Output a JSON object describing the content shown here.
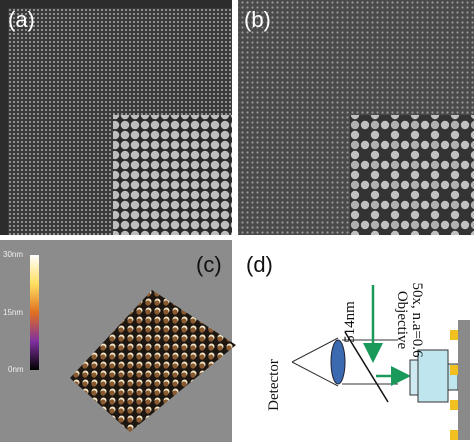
{
  "panels": {
    "a": "(a)",
    "b": "(b)",
    "c": "(c)",
    "d": "(d)"
  },
  "colorbar": {
    "top": "30nm",
    "middle": "15nm",
    "bottom": "0nm"
  },
  "setup": {
    "wavelength": "514nm",
    "objective": "Objective",
    "objective_spec": "50x, n.a=0.6",
    "detector": "Detector"
  }
}
